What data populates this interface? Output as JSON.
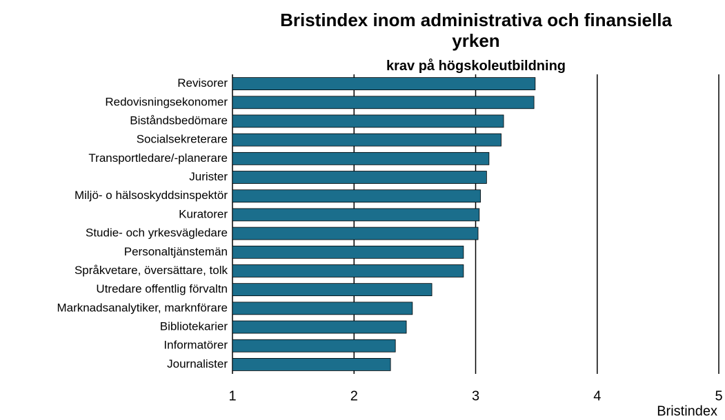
{
  "chart_data": {
    "type": "barh",
    "title": "Bristindex inom administrativa och finansiella yrken",
    "subtitle": "krav på högskoleutbildning",
    "xlabel": "Bristindex",
    "categories": [
      "Revisorer",
      "Redovisningsekonomer",
      "Biståndsbedömare",
      "Socialsekreterare",
      "Transportledare/-planerare",
      "Jurister",
      "Miljö- o hälsoskyddsinspektör",
      "Kuratorer",
      "Studie- och yrkesvägledare",
      "Personaltjänstemän",
      "Språkvetare, översättare, tolk",
      "Utredare offentlig förvaltn",
      "Marknadsanalytiker, marknförare",
      "Bibliotekarier",
      "Informatörer",
      "Journalister"
    ],
    "values": [
      3.49,
      3.48,
      3.23,
      3.21,
      3.11,
      3.09,
      3.04,
      3.03,
      3.02,
      2.9,
      2.9,
      2.64,
      2.48,
      2.43,
      2.34,
      2.3
    ],
    "color": "#1b6e8c",
    "xlim": [
      1,
      5
    ],
    "xticks": [
      1,
      2,
      3,
      4,
      5
    ],
    "grid": true
  }
}
